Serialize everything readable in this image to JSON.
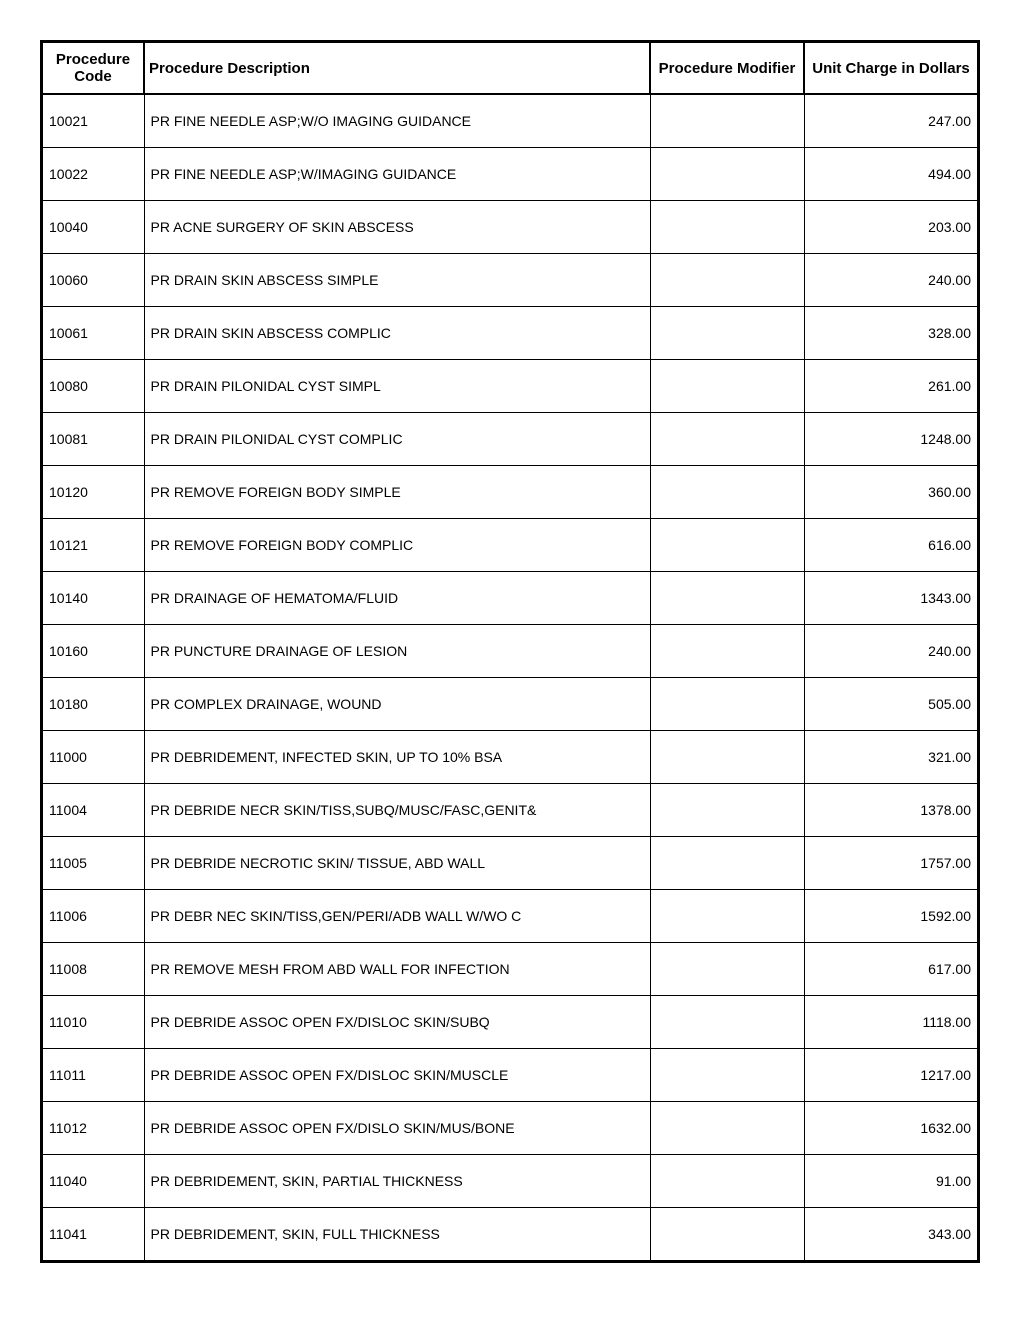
{
  "table": {
    "columns": {
      "code": "Procedure Code",
      "desc": "Procedure Description",
      "mod": "Procedure Modifier",
      "charge": "Unit Charge in Dollars"
    },
    "rows": [
      {
        "code": "10021",
        "desc": "PR FINE NEEDLE ASP;W/O IMAGING GUIDANCE",
        "mod": "",
        "charge": "247.00"
      },
      {
        "code": "10022",
        "desc": "PR FINE NEEDLE ASP;W/IMAGING GUIDANCE",
        "mod": "",
        "charge": "494.00"
      },
      {
        "code": "10040",
        "desc": "PR ACNE SURGERY OF SKIN ABSCESS",
        "mod": "",
        "charge": "203.00"
      },
      {
        "code": "10060",
        "desc": "PR DRAIN SKIN ABSCESS SIMPLE",
        "mod": "",
        "charge": "240.00"
      },
      {
        "code": "10061",
        "desc": "PR DRAIN SKIN ABSCESS COMPLIC",
        "mod": "",
        "charge": "328.00"
      },
      {
        "code": "10080",
        "desc": "PR DRAIN PILONIDAL CYST SIMPL",
        "mod": "",
        "charge": "261.00"
      },
      {
        "code": "10081",
        "desc": "PR DRAIN PILONIDAL CYST COMPLIC",
        "mod": "",
        "charge": "1248.00"
      },
      {
        "code": "10120",
        "desc": "PR REMOVE FOREIGN BODY SIMPLE",
        "mod": "",
        "charge": "360.00"
      },
      {
        "code": "10121",
        "desc": "PR REMOVE FOREIGN BODY COMPLIC",
        "mod": "",
        "charge": "616.00"
      },
      {
        "code": "10140",
        "desc": "PR DRAINAGE OF HEMATOMA/FLUID",
        "mod": "",
        "charge": "1343.00"
      },
      {
        "code": "10160",
        "desc": "PR PUNCTURE DRAINAGE OF LESION",
        "mod": "",
        "charge": "240.00"
      },
      {
        "code": "10180",
        "desc": "PR COMPLEX DRAINAGE, WOUND",
        "mod": "",
        "charge": "505.00"
      },
      {
        "code": "11000",
        "desc": "PR DEBRIDEMENT, INFECTED SKIN, UP TO 10% BSA",
        "mod": "",
        "charge": "321.00"
      },
      {
        "code": "11004",
        "desc": "PR DEBRIDE NECR SKIN/TISS,SUBQ/MUSC/FASC,GENIT&",
        "mod": "",
        "charge": "1378.00"
      },
      {
        "code": "11005",
        "desc": "PR DEBRIDE NECROTIC SKIN/ TISSUE, ABD WALL",
        "mod": "",
        "charge": "1757.00"
      },
      {
        "code": "11006",
        "desc": "PR DEBR NEC SKIN/TISS,GEN/PERI/ADB WALL W/WO C",
        "mod": "",
        "charge": "1592.00"
      },
      {
        "code": "11008",
        "desc": "PR REMOVE MESH FROM ABD WALL FOR INFECTION",
        "mod": "",
        "charge": "617.00"
      },
      {
        "code": "11010",
        "desc": "PR DEBRIDE ASSOC OPEN FX/DISLOC SKIN/SUBQ",
        "mod": "",
        "charge": "1118.00"
      },
      {
        "code": "11011",
        "desc": "PR DEBRIDE ASSOC OPEN FX/DISLOC SKIN/MUSCLE",
        "mod": "",
        "charge": "1217.00"
      },
      {
        "code": "11012",
        "desc": "PR DEBRIDE ASSOC OPEN FX/DISLO SKIN/MUS/BONE",
        "mod": "",
        "charge": "1632.00"
      },
      {
        "code": "11040",
        "desc": "PR DEBRIDEMENT, SKIN, PARTIAL THICKNESS",
        "mod": "",
        "charge": "91.00"
      },
      {
        "code": "11041",
        "desc": "PR DEBRIDEMENT, SKIN, FULL THICKNESS",
        "mod": "",
        "charge": "343.00"
      }
    ]
  }
}
